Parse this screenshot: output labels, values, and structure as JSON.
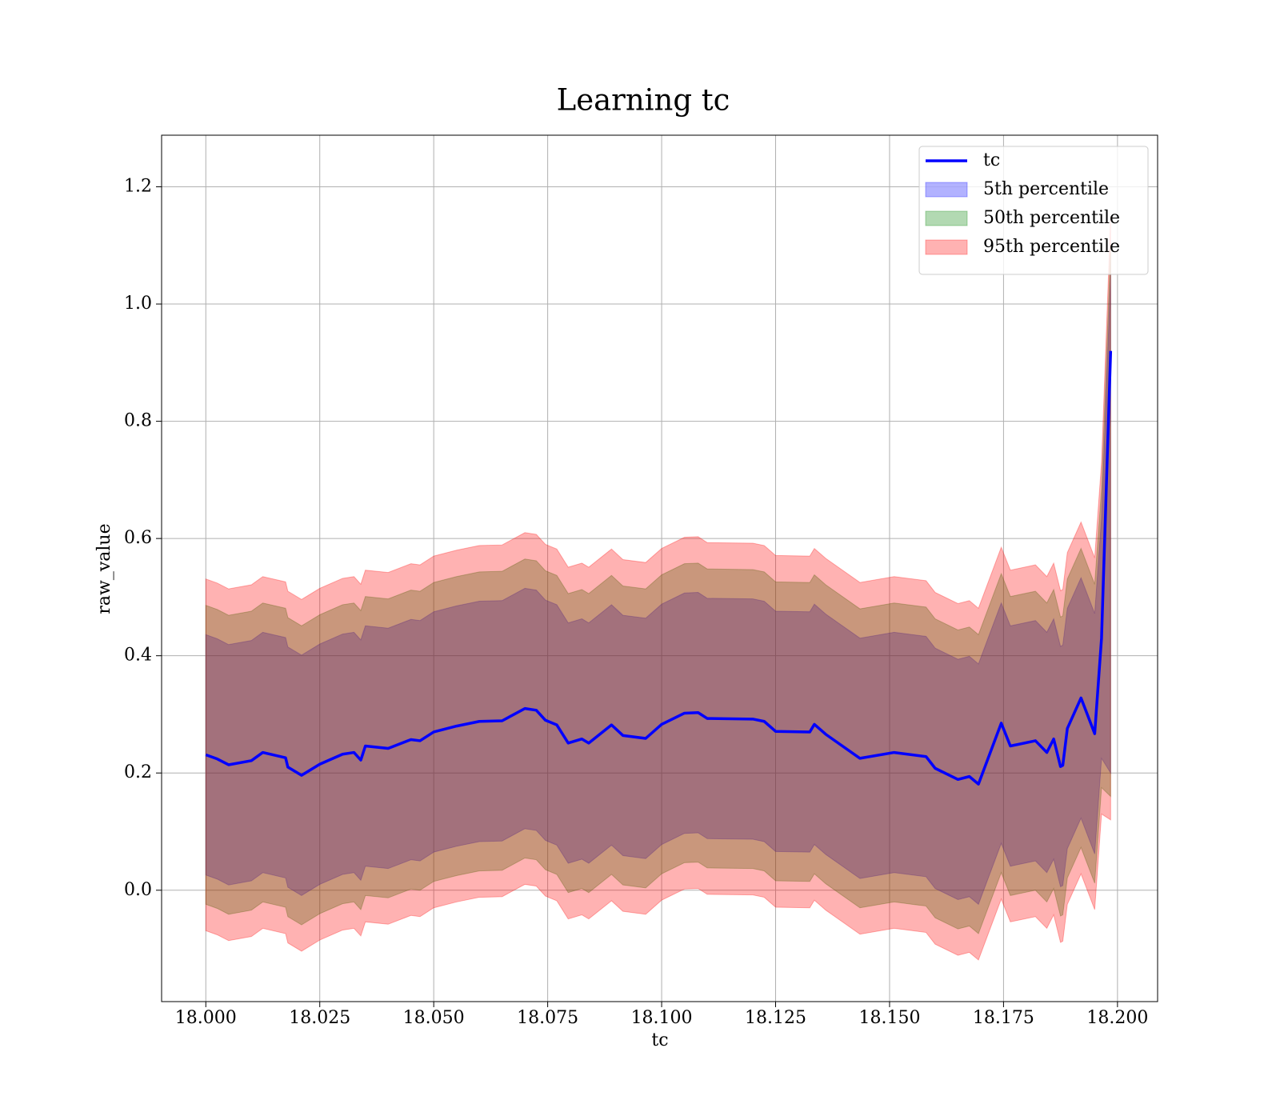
{
  "chart_data": {
    "type": "line",
    "title": "Learning tc",
    "xlabel": "tc",
    "ylabel": "raw_value",
    "x": [
      18.0,
      18.0025,
      18.005,
      18.01,
      18.0125,
      18.0175,
      18.018,
      18.021,
      18.025,
      18.03,
      18.0325,
      18.034,
      18.035,
      18.04,
      18.045,
      18.047,
      18.05,
      18.055,
      18.06,
      18.065,
      18.07,
      18.0725,
      18.0745,
      18.077,
      18.0795,
      18.0825,
      18.084,
      18.089,
      18.0915,
      18.0965,
      18.1,
      18.105,
      18.108,
      18.11,
      18.12,
      18.1225,
      18.125,
      18.1325,
      18.1335,
      18.136,
      18.1435,
      18.151,
      18.158,
      18.16,
      18.165,
      18.1675,
      18.1695,
      18.1745,
      18.1765,
      18.182,
      18.1845,
      18.186,
      18.1875,
      18.188,
      18.189,
      18.192,
      18.195,
      18.1965,
      18.1985
    ],
    "series": [
      {
        "name": "tc",
        "color": "#0000ff",
        "values": [
          0.231,
          0.224,
          0.214,
          0.221,
          0.235,
          0.226,
          0.21,
          0.196,
          0.215,
          0.232,
          0.235,
          0.222,
          0.246,
          0.242,
          0.257,
          0.255,
          0.27,
          0.28,
          0.288,
          0.289,
          0.31,
          0.307,
          0.29,
          0.282,
          0.251,
          0.258,
          0.251,
          0.282,
          0.264,
          0.259,
          0.283,
          0.302,
          0.303,
          0.293,
          0.292,
          0.288,
          0.271,
          0.27,
          0.283,
          0.266,
          0.225,
          0.235,
          0.228,
          0.208,
          0.189,
          0.194,
          0.181,
          0.285,
          0.246,
          0.255,
          0.235,
          0.258,
          0.211,
          0.213,
          0.276,
          0.328,
          0.267,
          0.43,
          0.92
        ]
      }
    ],
    "bands": [
      {
        "name": "5th percentile",
        "color": "#0000ff",
        "upper": [
          0.436,
          0.429,
          0.419,
          0.426,
          0.44,
          0.431,
          0.415,
          0.401,
          0.42,
          0.437,
          0.44,
          0.427,
          0.451,
          0.447,
          0.462,
          0.46,
          0.475,
          0.485,
          0.493,
          0.494,
          0.515,
          0.512,
          0.495,
          0.487,
          0.456,
          0.463,
          0.456,
          0.487,
          0.469,
          0.464,
          0.488,
          0.507,
          0.508,
          0.498,
          0.497,
          0.493,
          0.476,
          0.475,
          0.488,
          0.471,
          0.43,
          0.44,
          0.433,
          0.413,
          0.394,
          0.399,
          0.386,
          0.49,
          0.451,
          0.46,
          0.44,
          0.463,
          0.416,
          0.418,
          0.481,
          0.533,
          0.472,
          0.635,
          1.05
        ],
        "lower": [
          0.026,
          0.019,
          0.009,
          0.016,
          0.03,
          0.021,
          0.005,
          -0.009,
          0.01,
          0.027,
          0.03,
          0.017,
          0.041,
          0.037,
          0.052,
          0.05,
          0.065,
          0.075,
          0.083,
          0.084,
          0.105,
          0.102,
          0.085,
          0.077,
          0.046,
          0.053,
          0.046,
          0.077,
          0.059,
          0.054,
          0.078,
          0.097,
          0.098,
          0.088,
          0.087,
          0.083,
          0.066,
          0.065,
          0.078,
          0.061,
          0.02,
          0.03,
          0.023,
          0.003,
          -0.016,
          -0.011,
          -0.024,
          0.08,
          0.041,
          0.05,
          0.03,
          0.053,
          0.006,
          0.008,
          0.071,
          0.123,
          0.062,
          0.225,
          0.2
        ]
      },
      {
        "name": "50th percentile",
        "color": "#008000",
        "upper": [
          0.486,
          0.479,
          0.469,
          0.476,
          0.49,
          0.481,
          0.465,
          0.451,
          0.47,
          0.487,
          0.49,
          0.477,
          0.501,
          0.497,
          0.512,
          0.51,
          0.525,
          0.535,
          0.543,
          0.544,
          0.565,
          0.562,
          0.545,
          0.537,
          0.506,
          0.513,
          0.506,
          0.537,
          0.519,
          0.514,
          0.538,
          0.557,
          0.558,
          0.548,
          0.547,
          0.543,
          0.526,
          0.525,
          0.538,
          0.521,
          0.48,
          0.49,
          0.483,
          0.463,
          0.444,
          0.449,
          0.436,
          0.54,
          0.501,
          0.51,
          0.49,
          0.513,
          0.466,
          0.468,
          0.531,
          0.583,
          0.522,
          0.685,
          1.1
        ],
        "lower": [
          -0.024,
          -0.031,
          -0.041,
          -0.034,
          -0.02,
          -0.029,
          -0.045,
          -0.059,
          -0.04,
          -0.023,
          -0.02,
          -0.033,
          -0.009,
          -0.013,
          0.002,
          0,
          0.015,
          0.025,
          0.033,
          0.034,
          0.055,
          0.052,
          0.035,
          0.027,
          -0.004,
          0.003,
          -0.004,
          0.027,
          0.009,
          0.004,
          0.028,
          0.047,
          0.048,
          0.038,
          0.037,
          0.033,
          0.016,
          0.015,
          0.028,
          0.011,
          -0.03,
          -0.02,
          -0.027,
          -0.047,
          -0.066,
          -0.061,
          -0.074,
          0.03,
          -0.009,
          0,
          -0.02,
          0.003,
          -0.044,
          -0.042,
          0.021,
          0.073,
          0.012,
          0.175,
          0.16
        ]
      },
      {
        "name": "95th percentile",
        "color": "#ff0000",
        "upper": [
          0.531,
          0.524,
          0.514,
          0.521,
          0.535,
          0.526,
          0.51,
          0.496,
          0.515,
          0.532,
          0.535,
          0.522,
          0.546,
          0.542,
          0.557,
          0.555,
          0.57,
          0.58,
          0.588,
          0.589,
          0.61,
          0.607,
          0.59,
          0.582,
          0.551,
          0.558,
          0.551,
          0.582,
          0.564,
          0.559,
          0.583,
          0.602,
          0.603,
          0.593,
          0.592,
          0.588,
          0.571,
          0.57,
          0.583,
          0.566,
          0.525,
          0.535,
          0.528,
          0.508,
          0.489,
          0.494,
          0.481,
          0.585,
          0.546,
          0.555,
          0.535,
          0.558,
          0.511,
          0.513,
          0.576,
          0.628,
          0.567,
          0.73,
          1.15
        ],
        "lower": [
          -0.069,
          -0.076,
          -0.086,
          -0.079,
          -0.065,
          -0.074,
          -0.09,
          -0.104,
          -0.085,
          -0.068,
          -0.065,
          -0.078,
          -0.054,
          -0.058,
          -0.043,
          -0.045,
          -0.03,
          -0.02,
          -0.012,
          -0.011,
          0.01,
          0.007,
          -0.01,
          -0.018,
          -0.049,
          -0.042,
          -0.049,
          -0.018,
          -0.036,
          -0.041,
          -0.017,
          0.002,
          0.003,
          -0.007,
          -0.008,
          -0.012,
          -0.029,
          -0.03,
          -0.017,
          -0.034,
          -0.075,
          -0.065,
          -0.072,
          -0.092,
          -0.111,
          -0.106,
          -0.119,
          -0.015,
          -0.054,
          -0.045,
          -0.065,
          -0.042,
          -0.089,
          -0.087,
          -0.024,
          0.028,
          -0.033,
          0.13,
          0.12
        ]
      }
    ],
    "band_opacity": 0.3,
    "xlim": [
      17.9903,
      18.2088
    ],
    "xticks": [
      {
        "value": 18.0,
        "label": "18.000"
      },
      18.025,
      {
        "value": 18.05,
        "label": "18.050"
      },
      18.075,
      {
        "value": 18.1,
        "label": "18.100"
      },
      18.125,
      {
        "value": 18.15,
        "label": "18.150"
      },
      18.175,
      {
        "value": 18.2,
        "label": "18.200"
      }
    ],
    "ylim": [
      -0.19,
      1.288
    ],
    "yticks": [
      {
        "value": 0,
        "label": "0.0"
      },
      0.2,
      0.4,
      0.6,
      0.8,
      {
        "value": 1,
        "label": "1.0"
      },
      1.2
    ],
    "grid": true,
    "legend": "upper right"
  }
}
